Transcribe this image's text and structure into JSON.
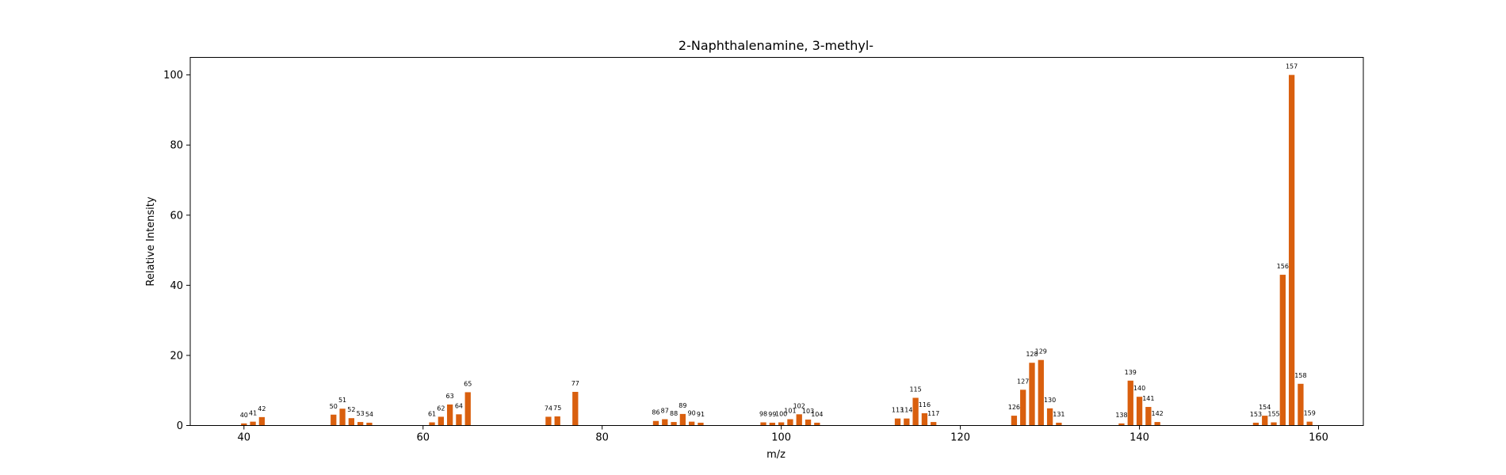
{
  "chart_data": {
    "type": "bar",
    "title": "2-Naphthalenamine, 3-methyl-",
    "xlabel": "m/z",
    "ylabel": "Relative Intensity",
    "xlim": [
      34,
      165
    ],
    "ylim": [
      0,
      105
    ],
    "xticks": [
      40,
      60,
      80,
      100,
      120,
      140,
      160
    ],
    "yticks": [
      0,
      20,
      40,
      60,
      80,
      100
    ],
    "grid": false,
    "bar_color": "#d95f0e",
    "x": [
      40,
      41,
      42,
      50,
      51,
      52,
      53,
      54,
      61,
      62,
      63,
      64,
      65,
      74,
      75,
      77,
      86,
      87,
      88,
      89,
      90,
      91,
      98,
      99,
      100,
      101,
      102,
      103,
      104,
      113,
      114,
      115,
      116,
      117,
      126,
      127,
      128,
      129,
      130,
      131,
      138,
      139,
      140,
      141,
      142,
      153,
      154,
      155,
      156,
      157,
      158,
      159
    ],
    "values": [
      0.6,
      1.1,
      2.4,
      3.1,
      4.8,
      2.1,
      1.0,
      0.8,
      0.9,
      2.5,
      6.0,
      3.2,
      9.5,
      2.5,
      2.6,
      9.6,
      1.3,
      1.8,
      1.0,
      3.3,
      1.1,
      0.8,
      0.9,
      0.8,
      0.9,
      1.8,
      3.2,
      1.7,
      0.8,
      2.0,
      2.0,
      7.9,
      3.5,
      1.0,
      2.8,
      10.2,
      17.9,
      18.7,
      4.9,
      0.8,
      0.6,
      12.8,
      8.2,
      5.3,
      1.0,
      0.8,
      2.8,
      0.9,
      43.0,
      100.0,
      11.9,
      1.1
    ],
    "labels": [
      "40",
      "41",
      "42",
      "50",
      "51",
      "52",
      "53",
      "54",
      "61",
      "62",
      "63",
      "64",
      "65",
      "74",
      "75",
      "77",
      "86",
      "87",
      "88",
      "89",
      "90",
      "91",
      "98",
      "99",
      "100",
      "101",
      "102",
      "103",
      "104",
      "113",
      "114",
      "115",
      "116",
      "117",
      "126",
      "127",
      "128",
      "129",
      "130",
      "131",
      "138",
      "139",
      "140",
      "141",
      "142",
      "153",
      "154",
      "155",
      "156",
      "157",
      "158",
      "159"
    ]
  }
}
